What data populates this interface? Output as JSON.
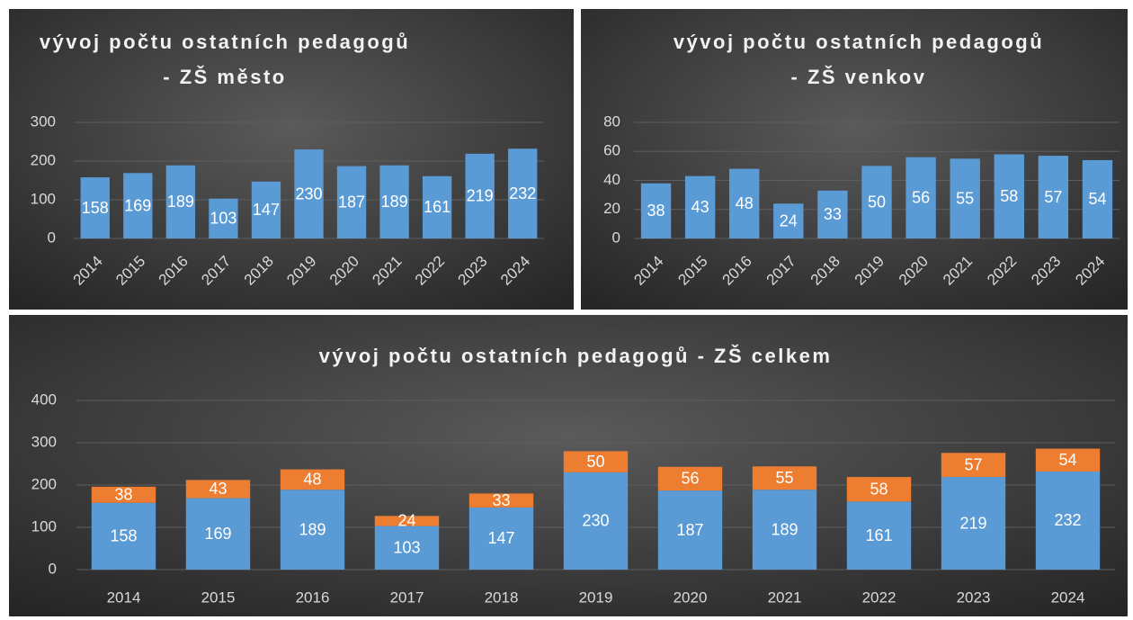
{
  "chart_data": [
    {
      "type": "bar",
      "title": [
        "vývoj počtu ostatních pedagogů",
        "- ZŠ město"
      ],
      "categories": [
        "2014",
        "2015",
        "2016",
        "2017",
        "2018",
        "2019",
        "2020",
        "2021",
        "2022",
        "2023",
        "2024"
      ],
      "values": [
        158,
        169,
        189,
        103,
        147,
        230,
        187,
        189,
        161,
        219,
        232
      ],
      "color": "#5b9bd5",
      "ylim": [
        0,
        300
      ],
      "yticks": [
        0,
        100,
        200,
        300
      ],
      "grid": true
    },
    {
      "type": "bar",
      "title": [
        "vývoj počtu ostatních pedagogů",
        "- ZŠ venkov"
      ],
      "categories": [
        "2014",
        "2015",
        "2016",
        "2017",
        "2018",
        "2019",
        "2020",
        "2021",
        "2022",
        "2023",
        "2024"
      ],
      "values": [
        38,
        43,
        48,
        24,
        33,
        50,
        56,
        55,
        58,
        57,
        54
      ],
      "color": "#5b9bd5",
      "ylim": [
        0,
        80
      ],
      "yticks": [
        0,
        20,
        40,
        60,
        80
      ],
      "grid": true
    },
    {
      "type": "stacked_bar",
      "title": [
        "vývoj počtu ostatních pedagogů - ZŠ celkem"
      ],
      "categories": [
        "2014",
        "2015",
        "2016",
        "2017",
        "2018",
        "2019",
        "2020",
        "2021",
        "2022",
        "2023",
        "2024"
      ],
      "series": [
        {
          "color": "#5b9bd5",
          "values": [
            158,
            169,
            189,
            103,
            147,
            230,
            187,
            189,
            161,
            219,
            232
          ]
        },
        {
          "color": "#ed7d31",
          "values": [
            38,
            43,
            48,
            24,
            33,
            50,
            56,
            55,
            58,
            57,
            54
          ]
        }
      ],
      "ylim": [
        0,
        400
      ],
      "yticks": [
        0,
        100,
        200,
        300,
        400
      ],
      "grid": true
    }
  ]
}
